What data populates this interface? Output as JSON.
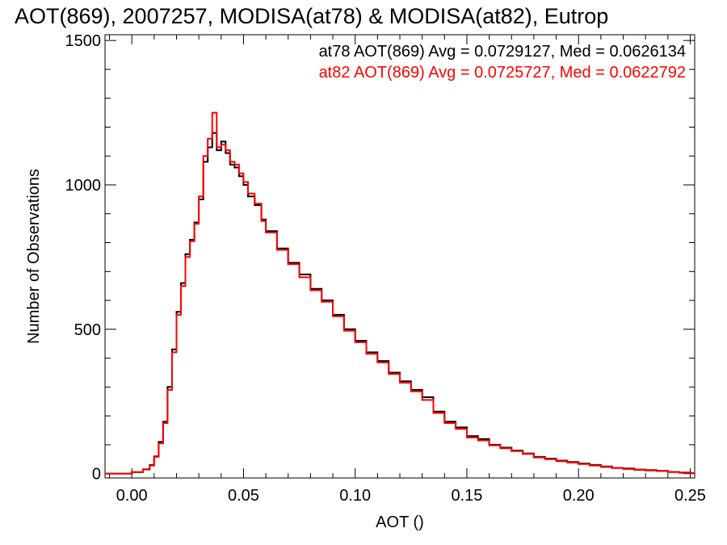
{
  "chart_data": {
    "type": "line",
    "title": "AOT(869), 2007257, MODISA(at78) & MODISA(at82), Eutrop",
    "xlabel": "AOT ()",
    "ylabel": "Number of Observations",
    "xlim": [
      -0.012,
      0.252
    ],
    "ylim": [
      -15,
      1520
    ],
    "xticks": [
      0.0,
      0.05,
      0.1,
      0.15,
      0.2,
      0.25
    ],
    "xtick_labels": [
      "0.00",
      "0.05",
      "0.10",
      "0.15",
      "0.20",
      "0.25"
    ],
    "yticks": [
      0,
      500,
      1000,
      1500
    ],
    "ytick_labels": [
      "0",
      "500",
      "1000",
      "1500"
    ],
    "grid": false,
    "legend_position": "top-right",
    "series": [
      {
        "label": "at78 AOT(869) Avg = 0.0729127, Med = 0.0626134",
        "color": "#000000",
        "x": [
          -0.012,
          -0.005,
          0.0,
          0.005,
          0.008,
          0.01,
          0.012,
          0.014,
          0.016,
          0.018,
          0.02,
          0.022,
          0.024,
          0.026,
          0.028,
          0.03,
          0.032,
          0.034,
          0.036,
          0.038,
          0.04,
          0.042,
          0.044,
          0.046,
          0.048,
          0.05,
          0.052,
          0.055,
          0.058,
          0.06,
          0.065,
          0.07,
          0.075,
          0.08,
          0.085,
          0.09,
          0.095,
          0.1,
          0.105,
          0.11,
          0.115,
          0.12,
          0.125,
          0.13,
          0.135,
          0.14,
          0.145,
          0.15,
          0.155,
          0.16,
          0.165,
          0.17,
          0.175,
          0.18,
          0.185,
          0.19,
          0.195,
          0.2,
          0.205,
          0.21,
          0.215,
          0.22,
          0.225,
          0.23,
          0.235,
          0.24,
          0.245,
          0.25
        ],
        "y": [
          0,
          0,
          5,
          15,
          30,
          60,
          110,
          180,
          300,
          430,
          560,
          660,
          760,
          810,
          870,
          950,
          1080,
          1130,
          1180,
          1120,
          1150,
          1110,
          1070,
          1060,
          1030,
          1000,
          960,
          930,
          880,
          840,
          780,
          730,
          690,
          640,
          600,
          550,
          500,
          460,
          420,
          390,
          350,
          320,
          290,
          265,
          215,
          180,
          160,
          130,
          120,
          100,
          90,
          80,
          70,
          58,
          52,
          45,
          40,
          35,
          30,
          25,
          20,
          18,
          14,
          12,
          10,
          6,
          4,
          2
        ]
      },
      {
        "label": "at82 AOT(869) Avg = 0.0725727, Med = 0.0622792",
        "color": "#ff0000",
        "x": [
          -0.012,
          -0.005,
          0.0,
          0.005,
          0.008,
          0.01,
          0.012,
          0.014,
          0.016,
          0.018,
          0.02,
          0.022,
          0.024,
          0.026,
          0.028,
          0.03,
          0.032,
          0.034,
          0.036,
          0.038,
          0.04,
          0.042,
          0.044,
          0.046,
          0.048,
          0.05,
          0.052,
          0.055,
          0.058,
          0.06,
          0.065,
          0.07,
          0.075,
          0.08,
          0.085,
          0.09,
          0.095,
          0.1,
          0.105,
          0.11,
          0.115,
          0.12,
          0.125,
          0.13,
          0.135,
          0.14,
          0.145,
          0.15,
          0.155,
          0.16,
          0.165,
          0.17,
          0.175,
          0.18,
          0.185,
          0.19,
          0.195,
          0.2,
          0.205,
          0.21,
          0.215,
          0.22,
          0.225,
          0.23,
          0.235,
          0.24,
          0.245,
          0.25
        ],
        "y": [
          0,
          0,
          5,
          14,
          28,
          58,
          105,
          175,
          290,
          420,
          550,
          650,
          750,
          805,
          865,
          960,
          1100,
          1160,
          1250,
          1130,
          1140,
          1120,
          1080,
          1070,
          1040,
          1010,
          970,
          935,
          875,
          835,
          775,
          725,
          680,
          635,
          595,
          545,
          495,
          455,
          415,
          385,
          345,
          315,
          285,
          255,
          210,
          175,
          155,
          125,
          115,
          98,
          88,
          78,
          68,
          56,
          50,
          43,
          38,
          33,
          28,
          23,
          19,
          16,
          13,
          11,
          9,
          5,
          3,
          1
        ]
      }
    ]
  }
}
